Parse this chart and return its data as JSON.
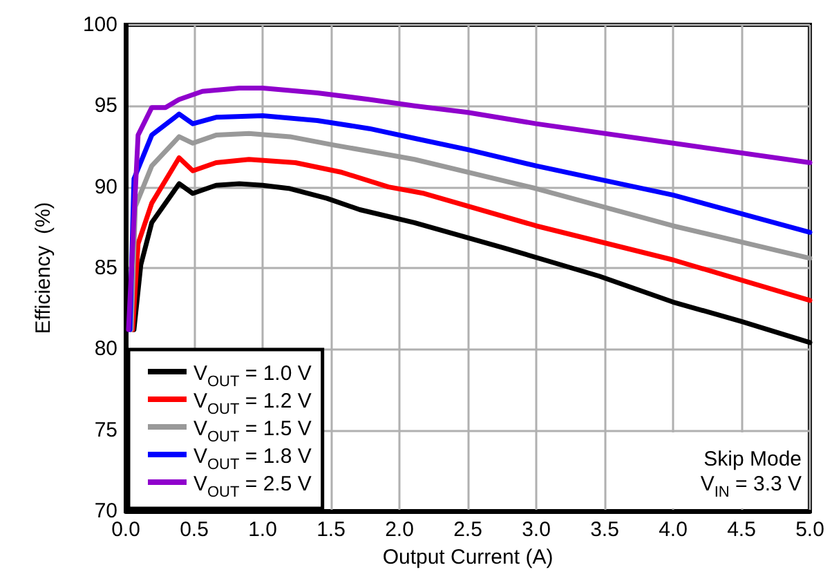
{
  "chart_data": {
    "type": "line",
    "xlabel": "Output Current (A)",
    "ylabel": "Efficiency  (%)",
    "xlim": [
      0,
      5
    ],
    "ylim": [
      70,
      100
    ],
    "xticks": [
      {
        "value": 0,
        "label": "0.0"
      },
      {
        "value": 0.5,
        "label": "0.5"
      },
      {
        "value": 1,
        "label": "1.0"
      },
      {
        "value": 1.5,
        "label": "1.5"
      },
      {
        "value": 2,
        "label": "2.0"
      },
      {
        "value": 2.5,
        "label": "2.5"
      },
      {
        "value": 3,
        "label": "3.0"
      },
      {
        "value": 3.5,
        "label": "3.5"
      },
      {
        "value": 4,
        "label": "4.0"
      },
      {
        "value": 4.5,
        "label": "4.5"
      },
      {
        "value": 5,
        "label": "5.0"
      }
    ],
    "yticks": [
      70,
      75,
      80,
      85,
      90,
      95,
      100
    ],
    "grid": true,
    "legend": "bottom left",
    "marker": "none",
    "line_style": "solid",
    "annotations": [
      "Skip Mode",
      "V$_{IN}$ = 3.3 V"
    ],
    "series": [
      {
        "name": "V$_{OUT}$ = 1.0 V",
        "color": "#000000",
        "x": [
          0.06,
          0.11,
          0.19,
          0.39,
          0.49,
          0.66,
          0.83,
          1.0,
          1.2,
          1.47,
          1.71,
          2.11,
          2.78,
          3.46,
          4.0,
          4.5,
          5.0
        ],
        "values": [
          81.2,
          85.2,
          87.8,
          90.2,
          89.6,
          90.1,
          90.2,
          90.1,
          89.9,
          89.3,
          88.6,
          87.8,
          86.2,
          84.5,
          82.9,
          81.7,
          80.4
        ]
      },
      {
        "name": "V$_{OUT}$ = 1.2 V",
        "color": "#ff0000",
        "x": [
          0.05,
          0.09,
          0.19,
          0.39,
          0.49,
          0.66,
          0.9,
          1.24,
          1.58,
          1.92,
          2.18,
          3.0,
          4.0,
          5.0
        ],
        "values": [
          81.2,
          86.5,
          89.0,
          91.8,
          91.0,
          91.5,
          91.7,
          91.5,
          90.9,
          90.0,
          89.6,
          87.6,
          85.5,
          83.0
        ]
      },
      {
        "name": "V$_{OUT}$ = 1.5 V",
        "color": "#999999",
        "x": [
          0.04,
          0.07,
          0.19,
          0.39,
          0.49,
          0.66,
          0.9,
          1.2,
          1.51,
          1.78,
          2.11,
          3.0,
          4.0,
          5.0
        ],
        "values": [
          81.2,
          88.8,
          91.3,
          93.1,
          92.7,
          93.2,
          93.3,
          93.1,
          92.6,
          92.2,
          91.7,
          89.9,
          87.6,
          85.6
        ]
      },
      {
        "name": "V$_{OUT}$ = 1.8 V",
        "color": "#0000ff",
        "x": [
          0.03,
          0.06,
          0.19,
          0.39,
          0.49,
          0.66,
          1.0,
          1.4,
          1.78,
          2.11,
          2.5,
          3.0,
          4.0,
          5.0
        ],
        "values": [
          81.2,
          90.5,
          93.2,
          94.5,
          93.9,
          94.3,
          94.4,
          94.1,
          93.6,
          93.0,
          92.3,
          91.3,
          89.5,
          87.2
        ]
      },
      {
        "name": "V$_{OUT}$ = 2.5 V",
        "color": "#8f00cc",
        "x": [
          0.02,
          0.09,
          0.19,
          0.29,
          0.39,
          0.56,
          0.83,
          1.0,
          1.4,
          1.78,
          2.11,
          2.5,
          3.0,
          4.0,
          5.0
        ],
        "values": [
          81.2,
          93.2,
          94.9,
          94.9,
          95.4,
          95.9,
          96.1,
          96.1,
          95.8,
          95.4,
          95.0,
          94.6,
          93.9,
          92.7,
          91.5
        ]
      }
    ]
  }
}
